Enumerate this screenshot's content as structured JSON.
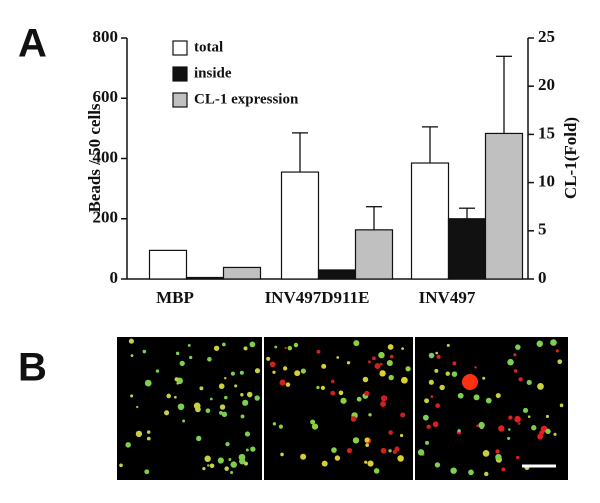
{
  "chart_data": {
    "type": "bar",
    "panel_label": "A",
    "categories": [
      "MBP",
      "INV497D911E",
      "INV497"
    ],
    "series": [
      {
        "name": "total",
        "color": "#ffffff",
        "values": [
          95,
          355,
          385
        ],
        "errors": [
          null,
          130,
          120
        ]
      },
      {
        "name": "inside",
        "color": "#111111",
        "values": [
          5,
          30,
          200
        ],
        "errors": [
          null,
          null,
          35
        ]
      },
      {
        "name": "CL-1 expression",
        "color": "#c0c0c0",
        "axis": "y2",
        "values": [
          1.2,
          5.1,
          15.1
        ],
        "errors": [
          null,
          2.4,
          8
        ]
      }
    ],
    "ylabel": "Beads / 50 cells",
    "y2label": "CL-1(Fold)",
    "ylim": [
      0,
      800
    ],
    "yticks": [
      0,
      200,
      400,
      600,
      800
    ],
    "y2lim": [
      0,
      25
    ],
    "y2ticks": [
      0,
      5,
      10,
      15,
      20,
      25
    ]
  },
  "figure_b": {
    "label": "B"
  }
}
